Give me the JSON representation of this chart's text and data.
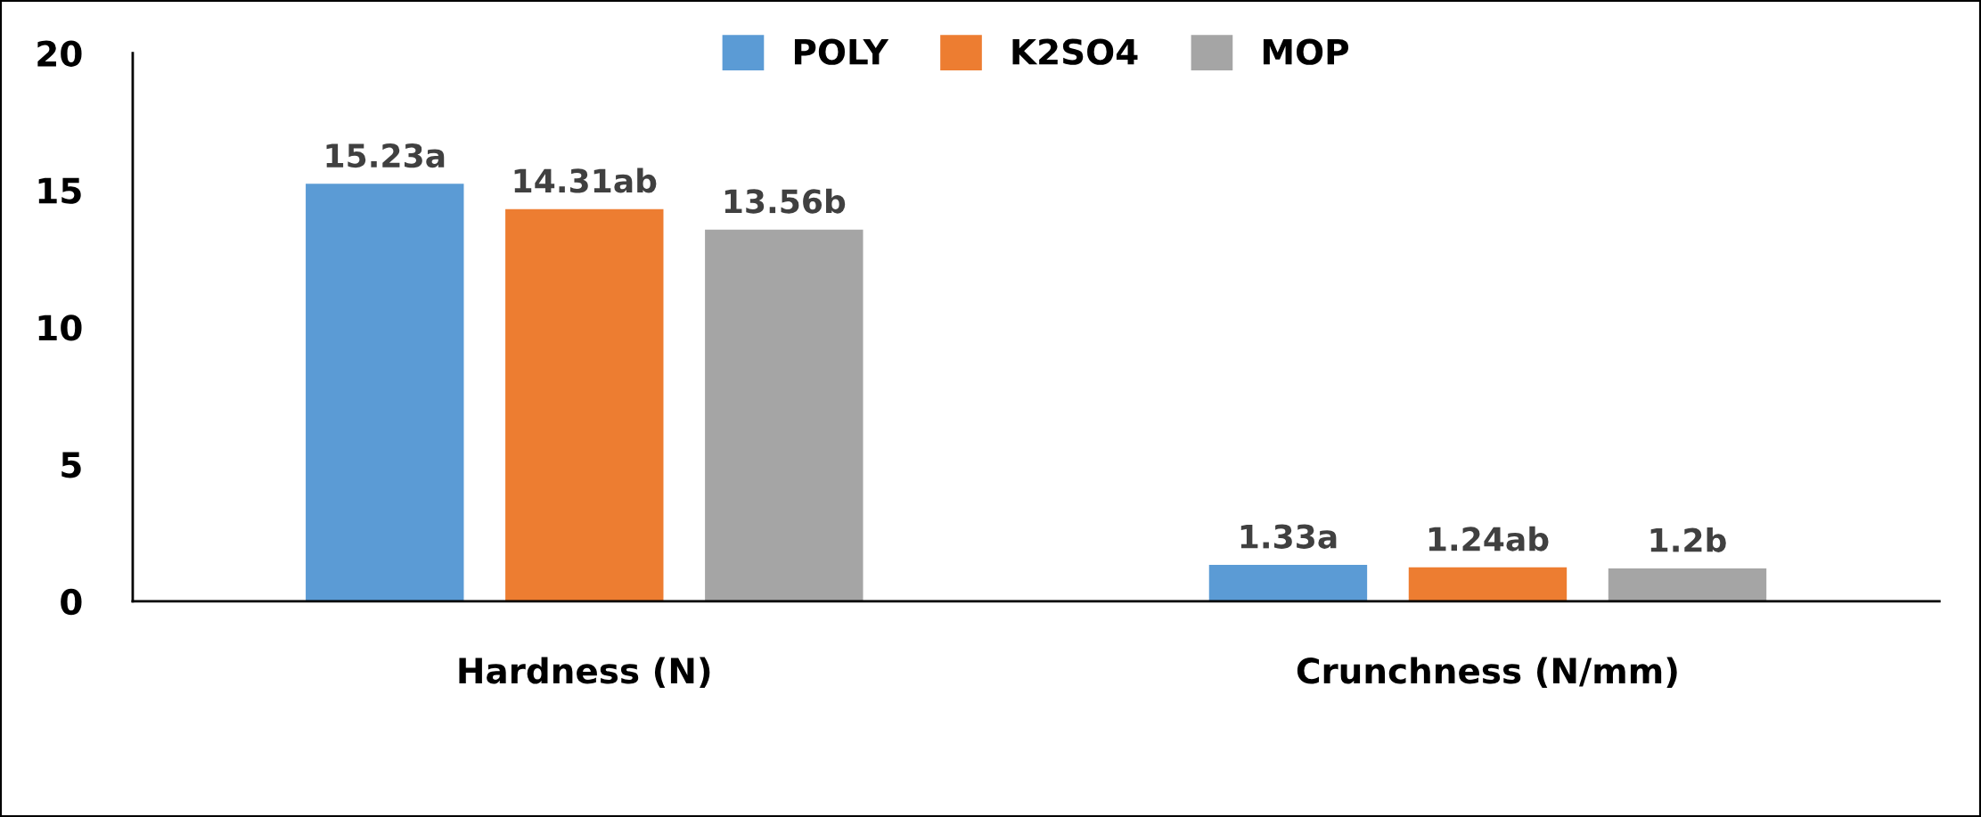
{
  "chart_data": {
    "type": "bar",
    "categories": [
      "Hardness (N)",
      "Crunchness (N/mm)"
    ],
    "series": [
      {
        "name": "POLY",
        "color": "#5b9bd5",
        "values": [
          15.23,
          1.33
        ],
        "value_labels": [
          "15.23a",
          "1.33a"
        ]
      },
      {
        "name": "K2SO4",
        "color": "#ed7d31",
        "values": [
          14.31,
          1.24
        ],
        "value_labels": [
          "14.31ab",
          "1.24ab"
        ]
      },
      {
        "name": "MOP",
        "color": "#a5a5a5",
        "values": [
          13.56,
          1.2
        ],
        "value_labels": [
          "13.56b",
          "1.2b"
        ]
      }
    ],
    "ylim": [
      0,
      20
    ],
    "yticks": [
      0,
      5,
      10,
      15,
      20
    ],
    "grid": false,
    "legend": "top"
  }
}
